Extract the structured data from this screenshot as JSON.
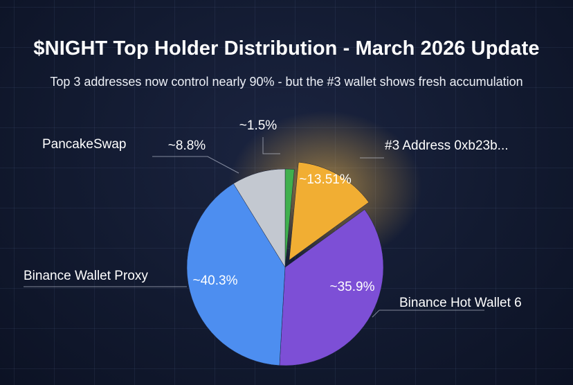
{
  "header": {
    "title": "$NIGHT Top Holder Distribution - March 2026 Update",
    "subtitle": "Top 3 addresses now control nearly 90% - but the #3 wallet shows fresh accumulation"
  },
  "chart_data": {
    "type": "pie",
    "title": "$NIGHT Top Holder Distribution - March 2026 Update",
    "subtitle": "Top 3 addresses now control nearly 90% - but the #3 wallet shows fresh accumulation",
    "slices": [
      {
        "name": "",
        "value": 1.5,
        "label": "~1.5%",
        "color": "#3fb04d"
      },
      {
        "name": "#3 Address 0xb23b...",
        "value": 13.51,
        "label": "~13.51%",
        "color": "#f1ae33",
        "exploded": true
      },
      {
        "name": "Binance Hot Wallet 6",
        "value": 35.9,
        "label": "~35.9%",
        "color": "#7d4fd6"
      },
      {
        "name": "Binance Wallet Proxy",
        "value": 40.3,
        "label": "~40.3%",
        "color": "#4d8ef0"
      },
      {
        "name": "PancakeSwap",
        "value": 8.8,
        "label": "~8.8%",
        "color": "#c3c8d0"
      }
    ]
  }
}
